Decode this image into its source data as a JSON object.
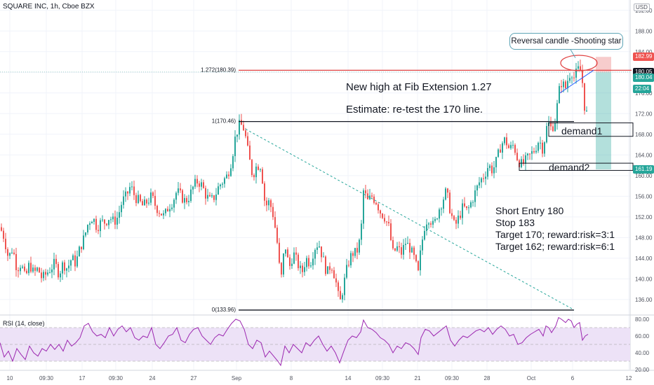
{
  "header": {
    "title": "SQUARE INC, 1h, Cboe BZX",
    "currency": "USD"
  },
  "colors": {
    "up": "#26a69a",
    "down": "#ef5350",
    "fib_line": "#e04141",
    "trend_line": "#26a69a",
    "rsi_line": "#9c27b0",
    "rsi_band": "#ede2f7",
    "reward_zone": "#26a69a",
    "risk_zone": "#ef9a9a"
  },
  "chart_data": [
    {
      "type": "candlestick",
      "title": "SQUARE INC, 1h, Cboe BZX",
      "ylim": [
        133,
        194
      ],
      "y_ticks": [
        136,
        140,
        144,
        148,
        152,
        156,
        160,
        164,
        168,
        172,
        176,
        180,
        184,
        188,
        192
      ],
      "y_tick_labels": [
        "136.00",
        "140.00",
        "144.00",
        "148.00",
        "152.00",
        "156.00",
        "160.00",
        "164.00",
        "168.00",
        "172.00",
        "176.00",
        "180.00",
        "184.00",
        "188.00",
        "192.00"
      ],
      "x_tick_labels": [
        "10",
        "09:30",
        "17",
        "09:30",
        "24",
        "27",
        "Sep",
        "8",
        "14",
        "09:30",
        "21",
        "09:30",
        "28",
        "Oct",
        "6",
        "12"
      ],
      "grid": true,
      "price_path": [
        [
          0,
          150
        ],
        [
          6,
          148
        ],
        [
          12,
          144
        ],
        [
          18,
          146
        ],
        [
          24,
          142
        ],
        [
          30,
          143
        ],
        [
          36,
          140
        ],
        [
          42,
          143
        ],
        [
          48,
          141
        ],
        [
          54,
          142
        ],
        [
          60,
          140
        ],
        [
          66,
          141
        ],
        [
          72,
          142
        ],
        [
          78,
          143
        ],
        [
          84,
          141
        ],
        [
          90,
          143
        ],
        [
          96,
          142
        ],
        [
          102,
          144
        ],
        [
          108,
          143
        ],
        [
          114,
          146
        ],
        [
          120,
          148
        ],
        [
          126,
          151
        ],
        [
          132,
          152
        ],
        [
          138,
          150
        ],
        [
          144,
          151
        ],
        [
          150,
          151
        ],
        [
          156,
          152
        ],
        [
          162,
          151
        ],
        [
          168,
          152
        ],
        [
          174,
          155
        ],
        [
          180,
          156
        ],
        [
          186,
          158
        ],
        [
          192,
          156
        ],
        [
          198,
          155
        ],
        [
          204,
          154
        ],
        [
          210,
          155
        ],
        [
          216,
          156
        ],
        [
          222,
          154
        ],
        [
          228,
          153
        ],
        [
          234,
          152
        ],
        [
          240,
          154
        ],
        [
          246,
          155
        ],
        [
          252,
          157
        ],
        [
          258,
          156
        ],
        [
          264,
          155
        ],
        [
          270,
          156
        ],
        [
          276,
          158
        ],
        [
          282,
          159
        ],
        [
          288,
          158
        ],
        [
          294,
          156
        ],
        [
          300,
          155
        ],
        [
          306,
          156
        ],
        [
          312,
          158
        ],
        [
          318,
          159
        ],
        [
          324,
          160
        ],
        [
          330,
          163
        ],
        [
          336,
          168
        ],
        [
          342,
          170
        ],
        [
          348,
          169
        ],
        [
          354,
          164
        ],
        [
          360,
          160
        ],
        [
          366,
          162
        ],
        [
          372,
          162
        ],
        [
          378,
          154
        ],
        [
          384,
          155
        ],
        [
          390,
          152
        ],
        [
          396,
          146
        ],
        [
          400,
          139
        ],
        [
          406,
          147
        ],
        [
          412,
          142
        ],
        [
          418,
          145
        ],
        [
          424,
          143
        ],
        [
          430,
          141
        ],
        [
          436,
          144
        ],
        [
          442,
          143
        ],
        [
          448,
          146
        ],
        [
          454,
          147
        ],
        [
          460,
          144
        ],
        [
          466,
          141
        ],
        [
          472,
          143
        ],
        [
          478,
          140
        ],
        [
          484,
          135
        ],
        [
          490,
          139
        ],
        [
          496,
          143
        ],
        [
          502,
          145
        ],
        [
          508,
          145
        ],
        [
          514,
          148
        ],
        [
          518,
          157
        ],
        [
          524,
          155
        ],
        [
          530,
          156
        ],
        [
          536,
          155
        ],
        [
          542,
          153
        ],
        [
          548,
          152
        ],
        [
          554,
          150
        ],
        [
          560,
          145
        ],
        [
          566,
          146
        ],
        [
          572,
          145
        ],
        [
          578,
          147
        ],
        [
          584,
          146
        ],
        [
          590,
          144
        ],
        [
          596,
          141
        ],
        [
          600,
          146
        ],
        [
          606,
          151
        ],
        [
          612,
          152
        ],
        [
          618,
          150
        ],
        [
          624,
          153
        ],
        [
          630,
          155
        ],
        [
          636,
          157
        ],
        [
          642,
          153
        ],
        [
          648,
          150
        ],
        [
          654,
          152
        ],
        [
          660,
          154
        ],
        [
          666,
          153
        ],
        [
          672,
          155
        ],
        [
          678,
          157
        ],
        [
          684,
          159
        ],
        [
          690,
          160
        ],
        [
          696,
          162
        ],
        [
          702,
          161
        ],
        [
          708,
          163
        ],
        [
          714,
          166
        ],
        [
          720,
          167
        ],
        [
          726,
          165
        ],
        [
          732,
          166
        ],
        [
          738,
          163
        ],
        [
          744,
          162
        ],
        [
          750,
          163
        ],
        [
          756,
          164
        ],
        [
          762,
          165
        ],
        [
          768,
          167
        ],
        [
          774,
          165
        ],
        [
          778,
          169
        ],
        [
          782,
          170
        ],
        [
          786,
          169
        ],
        [
          792,
          171
        ],
        [
          796,
          176
        ],
        [
          800,
          178
        ],
        [
          806,
          177
        ],
        [
          810,
          179
        ],
        [
          814,
          180.4
        ],
        [
          818,
          179
        ],
        [
          822,
          180
        ],
        [
          826,
          181
        ],
        [
          830,
          178
        ],
        [
          834,
          172
        ]
      ],
      "annotations": {
        "fib_1272_label": "1.272(180.39)",
        "fib_1272_value": 180.39,
        "fib_1_label": "1(170.46)",
        "fib_1_value": 170.46,
        "fib_0_label": "0(133.96)",
        "fib_0_value": 133.96,
        "demand1_label": "demand1",
        "demand1_top": 170.2,
        "demand1_bottom": 167.6,
        "demand2_label": "demand2",
        "demand2_top": 162.4,
        "demand2_bottom": 161.0,
        "trend_start": [
          350,
          169
        ],
        "trend_end": [
          818,
          134
        ],
        "position_entry": 180.0,
        "position_stop": 182.99,
        "position_target": 161.19
      },
      "price_tags": [
        {
          "label": "182.99",
          "value": 182.99,
          "color": "#ef5350"
        },
        {
          "label": "180.05",
          "value": 180.05,
          "color": "#131722"
        },
        {
          "label": "180.04",
          "value": 179.0,
          "color": "#26a69a"
        },
        {
          "label": "22:04",
          "value": 176.8,
          "color": "#26a69a"
        },
        {
          "label": "161.19",
          "value": 161.19,
          "color": "#26a69a"
        }
      ]
    },
    {
      "type": "line",
      "title": "RSI (14, close)",
      "ylim": [
        20,
        85
      ],
      "y_ticks": [
        20,
        40,
        60,
        80
      ],
      "y_tick_labels": [
        "20.00",
        "40.00",
        "60.00",
        "80.00"
      ],
      "band": [
        30,
        70
      ],
      "values": [
        [
          0,
          52
        ],
        [
          6,
          35
        ],
        [
          12,
          42
        ],
        [
          18,
          30
        ],
        [
          24,
          45
        ],
        [
          30,
          38
        ],
        [
          36,
          32
        ],
        [
          42,
          48
        ],
        [
          48,
          40
        ],
        [
          54,
          36
        ],
        [
          60,
          45
        ],
        [
          66,
          42
        ],
        [
          72,
          50
        ],
        [
          78,
          44
        ],
        [
          84,
          50
        ],
        [
          90,
          42
        ],
        [
          96,
          55
        ],
        [
          102,
          48
        ],
        [
          108,
          52
        ],
        [
          114,
          58
        ],
        [
          120,
          72
        ],
        [
          126,
          75
        ],
        [
          132,
          65
        ],
        [
          138,
          60
        ],
        [
          144,
          62
        ],
        [
          150,
          58
        ],
        [
          156,
          70
        ],
        [
          162,
          60
        ],
        [
          168,
          68
        ],
        [
          174,
          72
        ],
        [
          180,
          65
        ],
        [
          186,
          70
        ],
        [
          192,
          58
        ],
        [
          198,
          55
        ],
        [
          204,
          60
        ],
        [
          210,
          58
        ],
        [
          216,
          70
        ],
        [
          222,
          50
        ],
        [
          228,
          45
        ],
        [
          234,
          52
        ],
        [
          240,
          60
        ],
        [
          246,
          62
        ],
        [
          252,
          70
        ],
        [
          258,
          55
        ],
        [
          264,
          52
        ],
        [
          270,
          62
        ],
        [
          276,
          68
        ],
        [
          282,
          70
        ],
        [
          288,
          60
        ],
        [
          294,
          55
        ],
        [
          300,
          50
        ],
        [
          306,
          58
        ],
        [
          312,
          62
        ],
        [
          318,
          60
        ],
        [
          324,
          68
        ],
        [
          330,
          75
        ],
        [
          336,
          80
        ],
        [
          342,
          78
        ],
        [
          348,
          68
        ],
        [
          354,
          50
        ],
        [
          360,
          45
        ],
        [
          366,
          55
        ],
        [
          372,
          52
        ],
        [
          378,
          35
        ],
        [
          384,
          42
        ],
        [
          390,
          36
        ],
        [
          396,
          30
        ],
        [
          400,
          25
        ],
        [
          406,
          48
        ],
        [
          412,
          40
        ],
        [
          418,
          50
        ],
        [
          424,
          45
        ],
        [
          430,
          40
        ],
        [
          436,
          52
        ],
        [
          442,
          48
        ],
        [
          448,
          55
        ],
        [
          454,
          60
        ],
        [
          460,
          50
        ],
        [
          466,
          42
        ],
        [
          472,
          48
        ],
        [
          478,
          40
        ],
        [
          484,
          28
        ],
        [
          490,
          42
        ],
        [
          496,
          55
        ],
        [
          502,
          60
        ],
        [
          508,
          58
        ],
        [
          514,
          65
        ],
        [
          518,
          79
        ],
        [
          524,
          70
        ],
        [
          530,
          68
        ],
        [
          536,
          64
        ],
        [
          542,
          58
        ],
        [
          548,
          55
        ],
        [
          554,
          50
        ],
        [
          560,
          40
        ],
        [
          566,
          48
        ],
        [
          572,
          45
        ],
        [
          578,
          52
        ],
        [
          584,
          50
        ],
        [
          590,
          45
        ],
        [
          596,
          38
        ],
        [
          600,
          58
        ],
        [
          606,
          68
        ],
        [
          612,
          66
        ],
        [
          618,
          60
        ],
        [
          624,
          64
        ],
        [
          630,
          68
        ],
        [
          636,
          72
        ],
        [
          642,
          55
        ],
        [
          648,
          48
        ],
        [
          654,
          55
        ],
        [
          660,
          60
        ],
        [
          666,
          58
        ],
        [
          672,
          62
        ],
        [
          678,
          66
        ],
        [
          684,
          68
        ],
        [
          690,
          65
        ],
        [
          696,
          70
        ],
        [
          702,
          62
        ],
        [
          708,
          68
        ],
        [
          714,
          72
        ],
        [
          720,
          68
        ],
        [
          726,
          60
        ],
        [
          732,
          62
        ],
        [
          738,
          50
        ],
        [
          744,
          52
        ],
        [
          750,
          58
        ],
        [
          756,
          62
        ],
        [
          762,
          65
        ],
        [
          768,
          68
        ],
        [
          774,
          60
        ],
        [
          778,
          72
        ],
        [
          782,
          70
        ],
        [
          786,
          64
        ],
        [
          792,
          72
        ],
        [
          796,
          82
        ],
        [
          800,
          80
        ],
        [
          806,
          76
        ],
        [
          810,
          80
        ],
        [
          814,
          78
        ],
        [
          818,
          70
        ],
        [
          822,
          74
        ],
        [
          826,
          76
        ],
        [
          830,
          55
        ],
        [
          834,
          60
        ],
        [
          838,
          62
        ]
      ]
    }
  ],
  "notes": {
    "fib_note": "New high at Fib Extension 1.27",
    "estimate": "Estimate: re-test the 170 line.",
    "callout": "Reversal candle -Shooting star",
    "plan": [
      "Short Entry 180",
      "Stop 183",
      "Target 170; reward:risk=3:1",
      "Target 162; reward:risk=6:1"
    ]
  }
}
